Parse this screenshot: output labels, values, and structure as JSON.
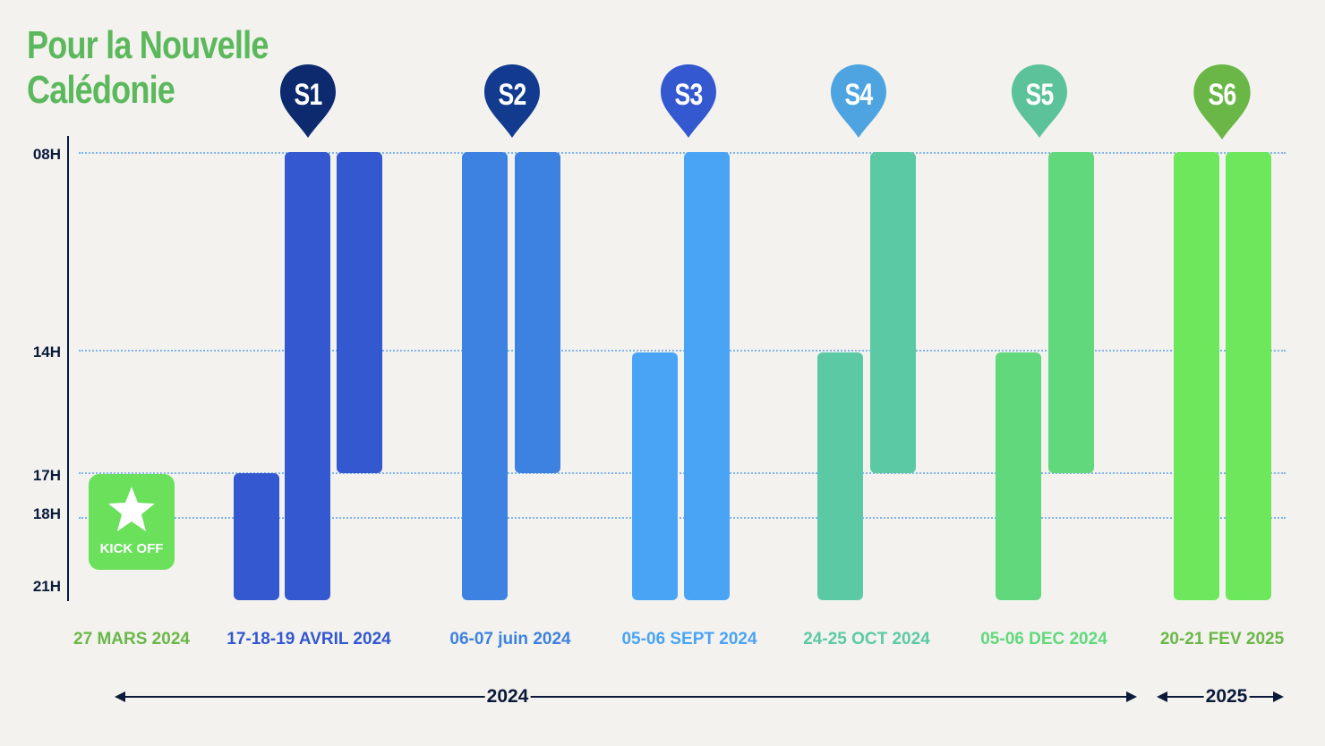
{
  "title": {
    "line1": "Pour la Nouvelle",
    "line2": "Calédonie"
  },
  "y_labels": [
    "08H",
    "14H",
    "17H",
    "18H",
    "21H"
  ],
  "sessions": [
    {
      "label": "S1",
      "color": "#0d2a6e",
      "date": "17-18-19 AVRIL 2024",
      "date_color": "#3358d0"
    },
    {
      "label": "S2",
      "color": "#123b8f",
      "date": "06-07 juin 2024",
      "date_color": "#3d82e0"
    },
    {
      "label": "S3",
      "color": "#3358d0",
      "date": "05-06 SEPT 2024",
      "date_color": "#4aa4f5"
    },
    {
      "label": "S4",
      "color": "#4ea4e0",
      "date": "24-25 OCT 2024",
      "date_color": "#5cc9a5"
    },
    {
      "label": "S5",
      "color": "#5cc29a",
      "date": "05-06 DEC 2024",
      "date_color": "#62d87c"
    },
    {
      "label": "S6",
      "color": "#6ab748",
      "date": "20-21 FEV 2025",
      "date_color": "#6ab748"
    }
  ],
  "kickoff": {
    "label": "KICK OFF",
    "date": "27 MARS 2024",
    "date_color": "#6ab748",
    "color": "#6ae05b"
  },
  "years": [
    {
      "label": "2024"
    },
    {
      "label": "2025"
    }
  ],
  "chart_data": {
    "type": "bar",
    "ylabel": "",
    "y_ticks": [
      "08H",
      "14H",
      "17H",
      "18H",
      "21H"
    ],
    "bars": [
      {
        "session": "S1",
        "day": 1,
        "start": "17H",
        "end": "21H",
        "color": "#3358d0"
      },
      {
        "session": "S1",
        "day": 2,
        "start": "08H",
        "end": "21H",
        "color": "#3358d0"
      },
      {
        "session": "S1",
        "day": 3,
        "start": "08H",
        "end": "17H",
        "color": "#3358d0"
      },
      {
        "session": "S2",
        "day": 1,
        "start": "08H",
        "end": "21H",
        "color": "#3d82e0"
      },
      {
        "session": "S2",
        "day": 2,
        "start": "08H",
        "end": "17H",
        "color": "#3d82e0"
      },
      {
        "session": "S3",
        "day": 1,
        "start": "14H",
        "end": "21H",
        "color": "#4aa4f5"
      },
      {
        "session": "S3",
        "day": 2,
        "start": "08H",
        "end": "21H",
        "color": "#4aa4f5"
      },
      {
        "session": "S4",
        "day": 1,
        "start": "14H",
        "end": "21H",
        "color": "#5cc9a5"
      },
      {
        "session": "S4",
        "day": 2,
        "start": "08H",
        "end": "17H",
        "color": "#5cc9a5"
      },
      {
        "session": "S5",
        "day": 1,
        "start": "14H",
        "end": "21H",
        "color": "#62d87c"
      },
      {
        "session": "S5",
        "day": 2,
        "start": "08H",
        "end": "17H",
        "color": "#62d87c"
      },
      {
        "session": "S6",
        "day": 1,
        "start": "08H",
        "end": "21H",
        "color": "#6de85c"
      },
      {
        "session": "S6",
        "day": 2,
        "start": "08H",
        "end": "21H",
        "color": "#6de85c"
      }
    ]
  }
}
